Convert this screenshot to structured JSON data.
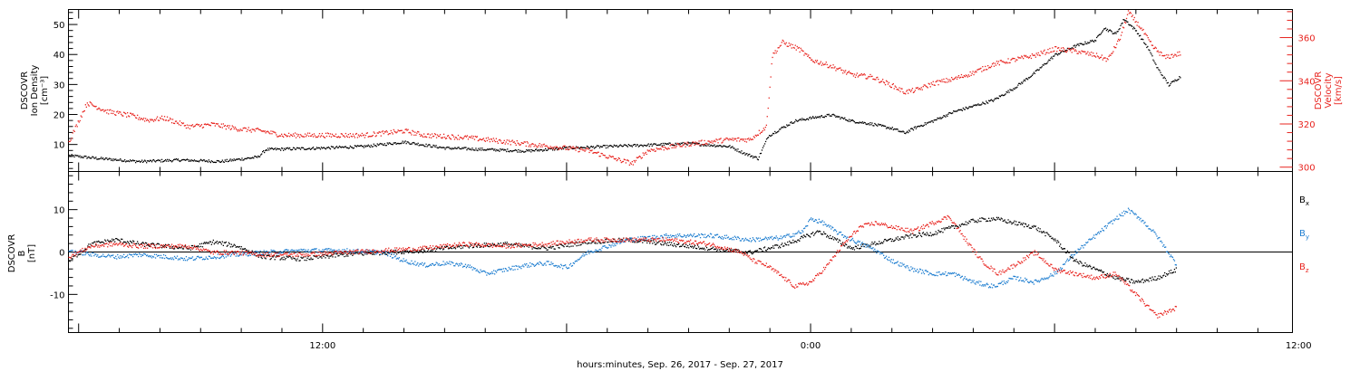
{
  "colors": {
    "black": "#000000",
    "red": "#e8241f",
    "blue": "#1f7ed0"
  },
  "footer": {
    "xlabel": "hours:minutes, Sep. 26, 2017 - Sep. 27, 2017"
  },
  "chart_data": [
    {
      "type": "scatter",
      "panel": "top",
      "title": "",
      "xlabel": "hours:minutes, Sep. 26, 2017 - Sep. 27, 2017",
      "x_units": "hours since 2017-09-26 00:00",
      "xlim": [
        5.75,
        35.85
      ],
      "x_tick_labels": [
        {
          "x": 12,
          "label": "12:00"
        },
        {
          "x": 24,
          "label": "0:00"
        },
        {
          "x": 36,
          "label": "12:00"
        }
      ],
      "ylabel_left": [
        "DSCOVR",
        "Ion Density",
        "[cm⁻³]"
      ],
      "ylabel_right": [
        "DSCOVR",
        "Velocity",
        "[km/s]"
      ],
      "ylim_left": [
        1,
        55
      ],
      "ylim_right": [
        298,
        373
      ],
      "yticks_left": [
        10,
        20,
        30,
        40,
        50
      ],
      "yticks_right": [
        300,
        320,
        340,
        360
      ],
      "series": [
        {
          "name": "Ion Density",
          "axis": "left",
          "color": "#000000",
          "points": [
            [
              5.75,
              6.5
            ],
            [
              6.5,
              5.5
            ],
            [
              7.5,
              4.5
            ],
            [
              8.5,
              5
            ],
            [
              9.5,
              4.5
            ],
            [
              10.4,
              6
            ],
            [
              10.6,
              8.5
            ],
            [
              12,
              9
            ],
            [
              13,
              9.5
            ],
            [
              14,
              11
            ],
            [
              15,
              9
            ],
            [
              16,
              8.5
            ],
            [
              17,
              8
            ],
            [
              18,
              9
            ],
            [
              19,
              9.5
            ],
            [
              20,
              10
            ],
            [
              21,
              10.5
            ],
            [
              22,
              9.5
            ],
            [
              22.4,
              7
            ],
            [
              22.7,
              5.5
            ],
            [
              22.95,
              13
            ],
            [
              23.2,
              15
            ],
            [
              23.6,
              18
            ],
            [
              24,
              19
            ],
            [
              24.5,
              20
            ],
            [
              25,
              18
            ],
            [
              25.5,
              17
            ],
            [
              26,
              15.5
            ],
            [
              26.3,
              14
            ],
            [
              26.6,
              16
            ],
            [
              27,
              18
            ],
            [
              27.5,
              21
            ],
            [
              28,
              23
            ],
            [
              28.5,
              25
            ],
            [
              29,
              29
            ],
            [
              29.5,
              34
            ],
            [
              30,
              40
            ],
            [
              30.5,
              43
            ],
            [
              31,
              45
            ],
            [
              31.2,
              49
            ],
            [
              31.5,
              47
            ],
            [
              31.7,
              52
            ],
            [
              32,
              48
            ],
            [
              32.3,
              42
            ],
            [
              32.5,
              36
            ],
            [
              32.8,
              30
            ],
            [
              33.1,
              33
            ]
          ]
        },
        {
          "name": "Velocity",
          "axis": "right",
          "color": "#e8241f",
          "points": [
            [
              5.75,
              312
            ],
            [
              6.2,
              330
            ],
            [
              6.7,
              326
            ],
            [
              7.3,
              324
            ],
            [
              7.7,
              322
            ],
            [
              8.1,
              323
            ],
            [
              8.7,
              319
            ],
            [
              9.3,
              320
            ],
            [
              9.9,
              318
            ],
            [
              10.5,
              317
            ],
            [
              11,
              315
            ],
            [
              12,
              315
            ],
            [
              13,
              315
            ],
            [
              14,
              317
            ],
            [
              14.5,
              315
            ],
            [
              15.5,
              314
            ],
            [
              16.5,
              312
            ],
            [
              17.5,
              310
            ],
            [
              18.5,
              308
            ],
            [
              19.2,
              304
            ],
            [
              19.6,
              302
            ],
            [
              20,
              308
            ],
            [
              21,
              311
            ],
            [
              22,
              313
            ],
            [
              22.5,
              313
            ],
            [
              22.9,
              319
            ],
            [
              23.05,
              352
            ],
            [
              23.3,
              358
            ],
            [
              23.7,
              355
            ],
            [
              24,
              350
            ],
            [
              24.5,
              347
            ],
            [
              25,
              343
            ],
            [
              25.5,
              342
            ],
            [
              26,
              338
            ],
            [
              26.3,
              335
            ],
            [
              26.6,
              336
            ],
            [
              27,
              339
            ],
            [
              27.5,
              341
            ],
            [
              28,
              344
            ],
            [
              28.5,
              348
            ],
            [
              29,
              350
            ],
            [
              29.5,
              352
            ],
            [
              30,
              355
            ],
            [
              30.5,
              354
            ],
            [
              31,
              352
            ],
            [
              31.3,
              350
            ],
            [
              31.6,
              360
            ],
            [
              31.8,
              372
            ],
            [
              32.1,
              365
            ],
            [
              32.4,
              356
            ],
            [
              32.7,
              351
            ],
            [
              33.1,
              353
            ]
          ]
        }
      ]
    },
    {
      "type": "scatter",
      "panel": "bottom",
      "title": "",
      "xlim": [
        5.75,
        35.85
      ],
      "ylabel_left": [
        "DSCOVR",
        "B",
        "[nT]"
      ],
      "ylim": [
        -19,
        19
      ],
      "yticks": [
        -10,
        0,
        10
      ],
      "zero_line": true,
      "legend_placement": "right",
      "series": [
        {
          "name": "B",
          "subscript": "x",
          "color": "#000000",
          "points": [
            [
              5.75,
              -2
            ],
            [
              6.3,
              2
            ],
            [
              6.9,
              3
            ],
            [
              7.5,
              2
            ],
            [
              8.1,
              1.5
            ],
            [
              8.7,
              1
            ],
            [
              9.3,
              2.5
            ],
            [
              9.9,
              1.5
            ],
            [
              10.5,
              -1
            ],
            [
              11.5,
              -1.5
            ],
            [
              12.5,
              -0.5
            ],
            [
              13.5,
              0
            ],
            [
              14.5,
              0.5
            ],
            [
              15.5,
              1.5
            ],
            [
              16.5,
              2
            ],
            [
              17.5,
              1
            ],
            [
              18.5,
              2.5
            ],
            [
              19.5,
              3
            ],
            [
              20.5,
              2
            ],
            [
              21.5,
              1
            ],
            [
              22.5,
              0
            ],
            [
              23.4,
              2
            ],
            [
              23.8,
              3.5
            ],
            [
              24.2,
              5
            ],
            [
              24.6,
              3
            ],
            [
              25,
              1
            ],
            [
              25.5,
              2
            ],
            [
              26,
              3
            ],
            [
              26.5,
              4
            ],
            [
              27,
              4.5
            ],
            [
              27.5,
              6
            ],
            [
              28,
              7.5
            ],
            [
              28.5,
              8
            ],
            [
              29,
              7
            ],
            [
              29.5,
              6
            ],
            [
              30,
              3
            ],
            [
              30.5,
              -2
            ],
            [
              31,
              -4
            ],
            [
              31.5,
              -6
            ],
            [
              32,
              -7
            ],
            [
              32.5,
              -6
            ],
            [
              33,
              -4
            ]
          ]
        },
        {
          "name": "B",
          "subscript": "y",
          "color": "#1f7ed0",
          "points": [
            [
              5.75,
              0.5
            ],
            [
              6.3,
              -0.5
            ],
            [
              6.9,
              -1
            ],
            [
              7.5,
              -0.5
            ],
            [
              8.1,
              -1
            ],
            [
              8.7,
              -1.5
            ],
            [
              9.3,
              -1
            ],
            [
              9.9,
              -0.5
            ],
            [
              10.5,
              0
            ],
            [
              11.5,
              0.5
            ],
            [
              12.5,
              0.5
            ],
            [
              13.5,
              0
            ],
            [
              14,
              -2
            ],
            [
              14.5,
              -3
            ],
            [
              15,
              -2.5
            ],
            [
              15.5,
              -3
            ],
            [
              16,
              -5
            ],
            [
              16.5,
              -4
            ],
            [
              17,
              -3
            ],
            [
              17.5,
              -2.5
            ],
            [
              18,
              -3.5
            ],
            [
              18.5,
              0
            ],
            [
              19.5,
              3
            ],
            [
              20.5,
              4
            ],
            [
              21.5,
              4
            ],
            [
              22.5,
              3
            ],
            [
              23.3,
              3.5
            ],
            [
              23.8,
              5
            ],
            [
              24,
              8
            ],
            [
              24.3,
              7
            ],
            [
              24.6,
              5
            ],
            [
              25,
              3
            ],
            [
              25.5,
              1
            ],
            [
              26,
              -2
            ],
            [
              26.5,
              -4
            ],
            [
              27,
              -5
            ],
            [
              27.5,
              -5
            ],
            [
              28,
              -7
            ],
            [
              28.5,
              -8
            ],
            [
              29,
              -6
            ],
            [
              29.5,
              -7
            ],
            [
              30,
              -5
            ],
            [
              30.5,
              0
            ],
            [
              31,
              4
            ],
            [
              31.5,
              8
            ],
            [
              31.8,
              10
            ],
            [
              32.1,
              8
            ],
            [
              32.5,
              4
            ],
            [
              33,
              -3
            ]
          ]
        },
        {
          "name": "B",
          "subscript": "z",
          "color": "#e8241f",
          "points": [
            [
              5.75,
              -1
            ],
            [
              6.3,
              1.5
            ],
            [
              6.9,
              2
            ],
            [
              7.5,
              1.5
            ],
            [
              8.1,
              1.5
            ],
            [
              8.7,
              1.5
            ],
            [
              9.3,
              0
            ],
            [
              9.9,
              0
            ],
            [
              10.5,
              -0.5
            ],
            [
              11.5,
              -0.5
            ],
            [
              12.5,
              0
            ],
            [
              13.5,
              0.5
            ],
            [
              14.5,
              1
            ],
            [
              15.5,
              2
            ],
            [
              16.5,
              1.5
            ],
            [
              17.5,
              2
            ],
            [
              18.5,
              3
            ],
            [
              19.5,
              3
            ],
            [
              20.5,
              3
            ],
            [
              21.5,
              2
            ],
            [
              22.3,
              0
            ],
            [
              22.6,
              -2
            ],
            [
              22.9,
              -3
            ],
            [
              23.2,
              -5
            ],
            [
              23.6,
              -8
            ],
            [
              24,
              -7
            ],
            [
              24.4,
              -3
            ],
            [
              24.8,
              2
            ],
            [
              25.2,
              6
            ],
            [
              25.6,
              7
            ],
            [
              26,
              6
            ],
            [
              26.5,
              5
            ],
            [
              27,
              7
            ],
            [
              27.4,
              8.5
            ],
            [
              27.8,
              3
            ],
            [
              28.2,
              -2
            ],
            [
              28.6,
              -5
            ],
            [
              29,
              -3
            ],
            [
              29.5,
              0
            ],
            [
              30,
              -4
            ],
            [
              30.5,
              -5
            ],
            [
              31,
              -6
            ],
            [
              31.5,
              -5
            ],
            [
              32,
              -10
            ],
            [
              32.5,
              -15
            ],
            [
              33,
              -13
            ]
          ]
        }
      ]
    }
  ]
}
